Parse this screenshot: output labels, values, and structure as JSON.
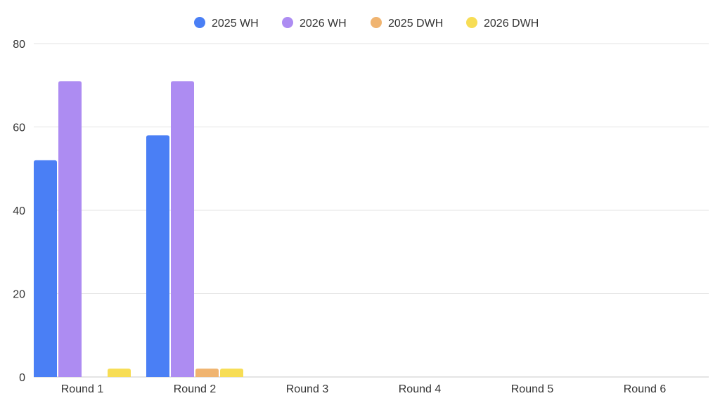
{
  "chart_data": {
    "type": "bar",
    "categories": [
      "Round 1",
      "Round 2",
      "Round 3",
      "Round 4",
      "Round 5",
      "Round 6"
    ],
    "series": [
      {
        "name": "2025 WH",
        "color": "#4a7ff5",
        "values": [
          52,
          58,
          null,
          null,
          null,
          null
        ]
      },
      {
        "name": "2026 WH",
        "color": "#ad8cf2",
        "values": [
          71,
          71,
          null,
          null,
          null,
          null
        ]
      },
      {
        "name": "2025 DWH",
        "color": "#f0b470",
        "values": [
          null,
          2,
          null,
          null,
          null,
          null
        ]
      },
      {
        "name": "2026 DWH",
        "color": "#f7dd55",
        "values": [
          2,
          2,
          null,
          null,
          null,
          null
        ]
      }
    ],
    "y_ticks": [
      "0",
      "20",
      "40",
      "60",
      "80"
    ],
    "ylim": [
      0,
      80
    ],
    "title": "",
    "xlabel": "",
    "ylabel": "",
    "grid": true,
    "legend_position": "top-center"
  }
}
